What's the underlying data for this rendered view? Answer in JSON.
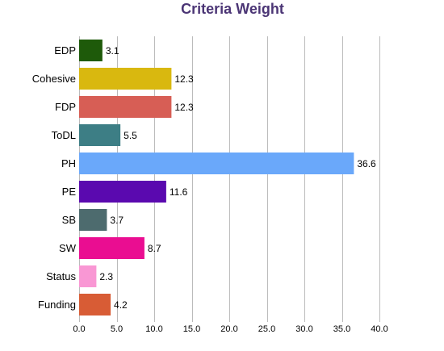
{
  "chart_data": {
    "type": "bar",
    "orientation": "horizontal",
    "title": "Criteria Weight",
    "xlabel": "",
    "ylabel": "",
    "categories": [
      "EDP",
      "Cohesive",
      "FDP",
      "ToDL",
      "PH",
      "PE",
      "SB",
      "SW",
      "Status",
      "Funding"
    ],
    "values": [
      3.1,
      12.3,
      12.3,
      5.5,
      36.6,
      11.6,
      3.7,
      8.7,
      2.3,
      4.2
    ],
    "value_labels": [
      "3.1",
      "12.3",
      "12.3",
      "5.5",
      "36.6",
      "11.6",
      "3.7",
      "8.7",
      "2.3",
      "4.2"
    ],
    "colors": [
      "#1e5a0a",
      "#d9b80f",
      "#d75e55",
      "#3d7e85",
      "#6aa8fa",
      "#5a09af",
      "#4d6b6e",
      "#ea0d91",
      "#f997d4",
      "#d85c35"
    ],
    "xlim": [
      0,
      40
    ],
    "xticks": [
      "0.0",
      "5.0",
      "10.0",
      "15.0",
      "20.0",
      "25.0",
      "30.0",
      "35.0",
      "40.0"
    ],
    "grid": "vertical",
    "legend": "none",
    "title_color": "#4b3575",
    "grid_color": "#bbbbbb"
  }
}
